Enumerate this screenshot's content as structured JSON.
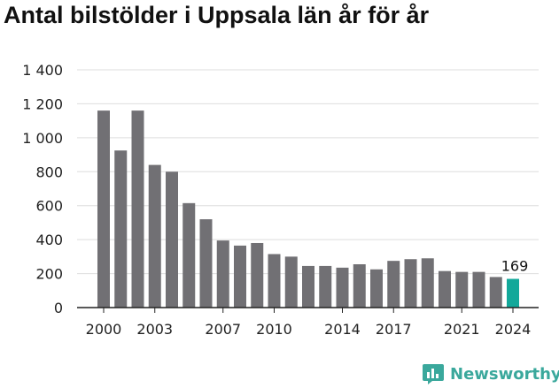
{
  "chart_data": {
    "type": "bar",
    "title": "Antal bilstölder i Uppsala län år för år",
    "xlabel": "",
    "ylabel": "",
    "categories": [
      "2000",
      "2001",
      "2002",
      "2003",
      "2004",
      "2005",
      "2006",
      "2007",
      "2008",
      "2009",
      "2010",
      "2011",
      "2012",
      "2013",
      "2014",
      "2015",
      "2016",
      "2017",
      "2018",
      "2019",
      "2020",
      "2021",
      "2022",
      "2023",
      "2024"
    ],
    "values": [
      1160,
      925,
      1160,
      840,
      800,
      615,
      520,
      395,
      365,
      380,
      315,
      300,
      245,
      245,
      235,
      255,
      225,
      275,
      285,
      290,
      215,
      210,
      210,
      180,
      169
    ],
    "ylim": [
      0,
      1400
    ],
    "yticks": [
      0,
      200,
      400,
      600,
      800,
      1000,
      1200,
      1400
    ],
    "ytick_labels": [
      "0",
      "200",
      "400",
      "600",
      "800",
      "1 000",
      "1 200",
      "1 400"
    ],
    "xtick_labels": [
      "2000",
      "2003",
      "2007",
      "2010",
      "2014",
      "2017",
      "2021",
      "2024"
    ],
    "highlight": {
      "category": "2024",
      "label": "169"
    },
    "grid": true,
    "colors": {
      "bar": "#717074",
      "highlight": "#12a89a",
      "grid": "#dedede",
      "axis": "#222222"
    }
  },
  "brand": {
    "name": "Newsworthy",
    "icon": "bar-chart-logo-icon"
  }
}
